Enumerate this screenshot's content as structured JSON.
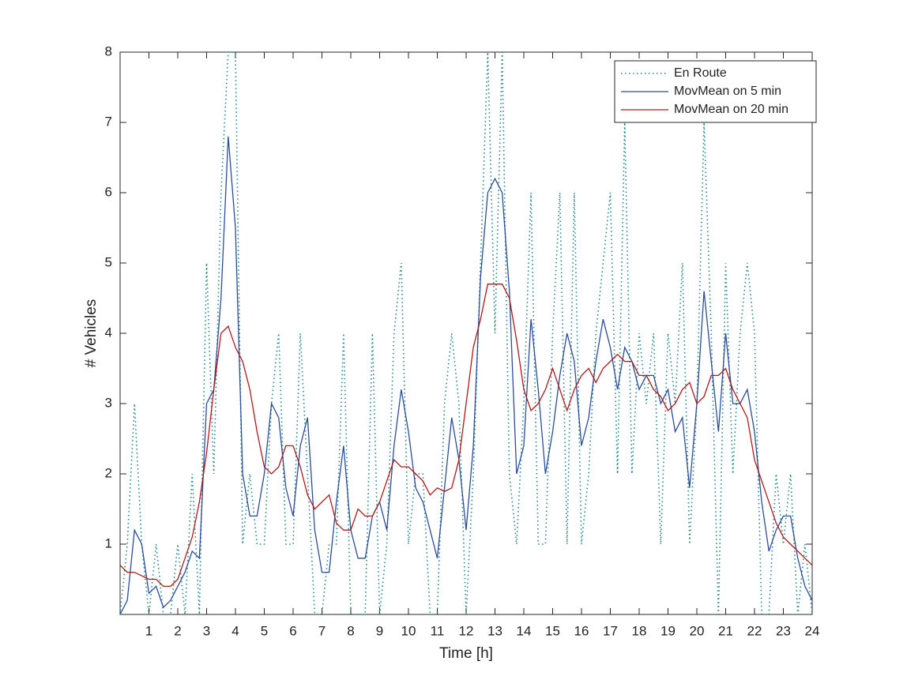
{
  "chart_data": {
    "type": "line",
    "xlabel": "Time [h]",
    "ylabel": "# Vehicles",
    "x": [
      0,
      0.25,
      0.5,
      0.75,
      1,
      1.25,
      1.5,
      1.75,
      2,
      2.25,
      2.5,
      2.75,
      3,
      3.25,
      3.5,
      3.75,
      4,
      4.25,
      4.5,
      4.75,
      5,
      5.25,
      5.5,
      5.75,
      6,
      6.25,
      6.5,
      6.75,
      7,
      7.25,
      7.5,
      7.75,
      8,
      8.25,
      8.5,
      8.75,
      9,
      9.25,
      9.5,
      9.75,
      10,
      10.25,
      10.5,
      10.75,
      11,
      11.25,
      11.5,
      11.75,
      12,
      12.25,
      12.5,
      12.75,
      13,
      13.25,
      13.5,
      13.75,
      14,
      14.25,
      14.5,
      14.75,
      15,
      15.25,
      15.5,
      15.75,
      16,
      16.25,
      16.5,
      16.75,
      17,
      17.25,
      17.5,
      17.75,
      18,
      18.25,
      18.5,
      18.75,
      19,
      19.25,
      19.5,
      19.75,
      20,
      20.25,
      20.5,
      20.75,
      21,
      21.25,
      21.5,
      21.75,
      22,
      22.25,
      22.5,
      22.75,
      23,
      23.25,
      23.5,
      23.75,
      24
    ],
    "series": [
      {
        "name": "En Route",
        "color": "#1f8a80",
        "style": "dotted",
        "values": [
          0,
          1,
          3,
          1,
          0,
          1,
          0,
          0,
          1,
          0,
          2,
          0,
          5,
          2,
          6,
          8,
          8,
          1,
          2,
          1,
          1,
          3,
          4,
          1,
          1,
          4,
          2,
          0,
          0,
          1,
          1,
          4,
          0,
          0,
          0,
          4,
          0,
          1,
          4,
          5,
          1,
          2,
          2,
          0,
          0,
          3,
          4,
          3,
          0,
          2,
          5,
          8,
          4,
          8,
          2,
          1,
          3,
          6,
          1,
          1,
          4,
          6,
          1,
          6,
          1,
          2,
          4,
          5,
          6,
          2,
          7,
          2,
          4,
          3,
          4,
          1,
          4,
          3,
          5,
          1,
          3,
          7,
          4,
          0,
          5,
          2,
          4,
          5,
          4,
          0,
          0,
          2,
          1,
          2,
          0,
          1,
          0
        ]
      },
      {
        "name": "MovMean on 5 min",
        "color": "#2b4c9b",
        "style": "solid",
        "values": [
          0,
          0.2,
          1.2,
          1.0,
          0.3,
          0.4,
          0.1,
          0.2,
          0.4,
          0.6,
          0.9,
          0.8,
          3.0,
          3.2,
          4.5,
          6.8,
          5.5,
          2.0,
          1.4,
          1.4,
          2.0,
          3.0,
          2.8,
          1.8,
          1.4,
          2.4,
          2.8,
          1.2,
          0.6,
          0.6,
          1.6,
          2.4,
          1.2,
          0.8,
          0.8,
          1.4,
          1.6,
          1.2,
          2.4,
          3.2,
          2.6,
          1.8,
          1.6,
          1.2,
          0.8,
          1.8,
          2.8,
          2.2,
          1.2,
          2.4,
          4.8,
          6.0,
          6.2,
          6.0,
          4.6,
          2.0,
          2.4,
          4.2,
          3.2,
          2.0,
          2.6,
          3.4,
          4.0,
          3.6,
          2.4,
          2.8,
          3.6,
          4.2,
          3.8,
          3.2,
          3.8,
          3.6,
          3.2,
          3.4,
          3.4,
          3.0,
          3.2,
          2.6,
          2.8,
          1.8,
          3.0,
          4.6,
          3.6,
          2.6,
          4.0,
          3.0,
          3.0,
          3.2,
          2.6,
          1.6,
          0.9,
          1.2,
          1.4,
          1.4,
          0.8,
          0.4,
          0.2
        ]
      },
      {
        "name": "MovMean on 20 min",
        "color": "#b01818",
        "style": "solid",
        "values": [
          0.7,
          0.6,
          0.6,
          0.55,
          0.5,
          0.5,
          0.4,
          0.4,
          0.5,
          0.8,
          1.1,
          1.6,
          2.3,
          3.2,
          4.0,
          4.1,
          3.8,
          3.6,
          3.2,
          2.6,
          2.1,
          2.0,
          2.1,
          2.4,
          2.4,
          2.1,
          1.7,
          1.5,
          1.6,
          1.7,
          1.3,
          1.2,
          1.2,
          1.5,
          1.4,
          1.4,
          1.6,
          1.9,
          2.2,
          2.1,
          2.1,
          2.0,
          1.9,
          1.7,
          1.8,
          1.75,
          1.8,
          2.2,
          3.0,
          3.8,
          4.2,
          4.7,
          4.7,
          4.7,
          4.5,
          3.9,
          3.2,
          2.9,
          3.0,
          3.2,
          3.5,
          3.2,
          2.9,
          3.2,
          3.4,
          3.5,
          3.3,
          3.5,
          3.6,
          3.7,
          3.6,
          3.6,
          3.4,
          3.4,
          3.2,
          3.1,
          2.9,
          3.0,
          3.2,
          3.3,
          3.0,
          3.1,
          3.4,
          3.4,
          3.5,
          3.2,
          3.0,
          2.8,
          2.2,
          1.9,
          1.6,
          1.3,
          1.1,
          1.0,
          0.9,
          0.8,
          0.7
        ]
      }
    ],
    "xlim": [
      0,
      24
    ],
    "xticks": [
      1,
      2,
      3,
      4,
      5,
      6,
      7,
      8,
      9,
      10,
      11,
      12,
      13,
      14,
      15,
      16,
      17,
      18,
      19,
      20,
      21,
      22,
      23,
      24
    ],
    "ylim": [
      0,
      8
    ],
    "yticks": [
      1,
      2,
      3,
      4,
      5,
      6,
      7,
      8
    ],
    "grid": false,
    "legend": "northeast"
  }
}
